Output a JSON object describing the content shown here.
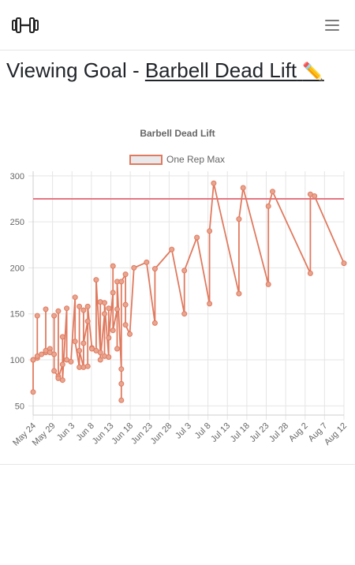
{
  "header": {
    "logo_icon": "dumbbell-icon",
    "menu_icon": "hamburger-menu-icon"
  },
  "page": {
    "title_prefix": "Viewing Goal - ",
    "exercise_name": "Barbell Dead Lift",
    "edit_icon": "✏️"
  },
  "chart_data": {
    "type": "line",
    "title": "Barbell Dead Lift",
    "legend": "One Rep Max",
    "legend_position": "top",
    "colors": {
      "line": "#e07a5f",
      "goal_line": "#e57683",
      "point_fill": "#e8a58f",
      "grid": "#e5e5e5",
      "text": "#666666"
    },
    "ylim": [
      40,
      305
    ],
    "y_ticks": [
      50,
      100,
      150,
      200,
      250,
      300
    ],
    "x_labels": [
      "May 24",
      "May 29",
      "Jun 3",
      "Jun 8",
      "Jun 13",
      "Jun 18",
      "Jun 23",
      "Jun 28",
      "Jul 3",
      "Jul 8",
      "Jul 13",
      "Jul 18",
      "Jul 23",
      "Jul 28",
      "Aug 2",
      "Aug 7",
      "Aug 12"
    ],
    "goal_value": 275,
    "grid": true,
    "series": [
      {
        "name": "One Rep Max",
        "points": [
          {
            "x": "2024-05-24",
            "y": 100
          },
          {
            "x": "2024-05-24",
            "y": 65
          },
          {
            "x": "2024-05-24",
            "y": 100
          },
          {
            "x": "2024-05-25",
            "y": 102
          },
          {
            "x": "2024-05-25",
            "y": 148
          },
          {
            "x": "2024-05-25",
            "y": 104
          },
          {
            "x": "2024-05-26",
            "y": 106
          },
          {
            "x": "2024-05-27",
            "y": 108
          },
          {
            "x": "2024-05-27",
            "y": 155
          },
          {
            "x": "2024-05-27",
            "y": 110
          },
          {
            "x": "2024-05-28",
            "y": 112
          },
          {
            "x": "2024-05-28",
            "y": 108
          },
          {
            "x": "2024-05-29",
            "y": 106
          },
          {
            "x": "2024-05-29",
            "y": 148
          },
          {
            "x": "2024-05-29",
            "y": 88
          },
          {
            "x": "2024-05-30",
            "y": 82
          },
          {
            "x": "2024-05-30",
            "y": 153
          },
          {
            "x": "2024-05-30",
            "y": 80
          },
          {
            "x": "2024-05-31",
            "y": 95
          },
          {
            "x": "2024-05-31",
            "y": 125
          },
          {
            "x": "2024-05-31",
            "y": 78
          },
          {
            "x": "2024-06-01",
            "y": 156
          },
          {
            "x": "2024-06-01",
            "y": 100
          },
          {
            "x": "2024-06-02",
            "y": 98
          },
          {
            "x": "2024-06-03",
            "y": 168
          },
          {
            "x": "2024-06-03",
            "y": 120
          },
          {
            "x": "2024-06-04",
            "y": 92
          },
          {
            "x": "2024-06-04",
            "y": 158
          },
          {
            "x": "2024-06-04",
            "y": 110
          },
          {
            "x": "2024-06-05",
            "y": 92
          },
          {
            "x": "2024-06-05",
            "y": 154
          },
          {
            "x": "2024-06-05",
            "y": 118
          },
          {
            "x": "2024-06-06",
            "y": 142
          },
          {
            "x": "2024-06-06",
            "y": 93
          },
          {
            "x": "2024-06-06",
            "y": 158
          },
          {
            "x": "2024-06-07",
            "y": 113
          },
          {
            "x": "2024-06-07",
            "y": 112
          },
          {
            "x": "2024-06-08",
            "y": 110
          },
          {
            "x": "2024-06-08",
            "y": 187
          },
          {
            "x": "2024-06-09",
            "y": 108
          },
          {
            "x": "2024-06-09",
            "y": 163
          },
          {
            "x": "2024-06-09",
            "y": 100
          },
          {
            "x": "2024-06-10",
            "y": 150
          },
          {
            "x": "2024-06-10",
            "y": 104
          },
          {
            "x": "2024-06-10",
            "y": 162
          },
          {
            "x": "2024-06-11",
            "y": 103
          },
          {
            "x": "2024-06-11",
            "y": 156
          },
          {
            "x": "2024-06-11",
            "y": 124
          },
          {
            "x": "2024-06-12",
            "y": 173
          },
          {
            "x": "2024-06-12",
            "y": 202
          },
          {
            "x": "2024-06-12",
            "y": 132
          },
          {
            "x": "2024-06-13",
            "y": 155
          },
          {
            "x": "2024-06-13",
            "y": 112
          },
          {
            "x": "2024-06-13",
            "y": 185
          },
          {
            "x": "2024-06-14",
            "y": 90
          },
          {
            "x": "2024-06-14",
            "y": 56
          },
          {
            "x": "2024-06-14",
            "y": 74
          },
          {
            "x": "2024-06-14",
            "y": 185
          },
          {
            "x": "2024-06-15",
            "y": 193
          },
          {
            "x": "2024-06-15",
            "y": 160
          },
          {
            "x": "2024-06-15",
            "y": 138
          },
          {
            "x": "2024-06-16",
            "y": 128
          },
          {
            "x": "2024-06-17",
            "y": 200
          },
          {
            "x": "2024-06-20",
            "y": 206
          },
          {
            "x": "2024-06-22",
            "y": 140
          },
          {
            "x": "2024-06-22",
            "y": 199
          },
          {
            "x": "2024-06-26",
            "y": 220
          },
          {
            "x": "2024-06-29",
            "y": 150
          },
          {
            "x": "2024-06-29",
            "y": 197
          },
          {
            "x": "2024-07-02",
            "y": 233
          },
          {
            "x": "2024-07-05",
            "y": 161
          },
          {
            "x": "2024-07-05",
            "y": 240
          },
          {
            "x": "2024-07-06",
            "y": 292
          },
          {
            "x": "2024-07-12",
            "y": 172
          },
          {
            "x": "2024-07-12",
            "y": 253
          },
          {
            "x": "2024-07-13",
            "y": 287
          },
          {
            "x": "2024-07-19",
            "y": 182
          },
          {
            "x": "2024-07-19",
            "y": 267
          },
          {
            "x": "2024-07-20",
            "y": 283
          },
          {
            "x": "2024-07-29",
            "y": 194
          },
          {
            "x": "2024-07-29",
            "y": 280
          },
          {
            "x": "2024-07-30",
            "y": 278
          },
          {
            "x": "2024-08-06",
            "y": 205
          }
        ]
      }
    ],
    "x_domain": [
      "2024-05-24",
      "2024-08-06"
    ]
  }
}
